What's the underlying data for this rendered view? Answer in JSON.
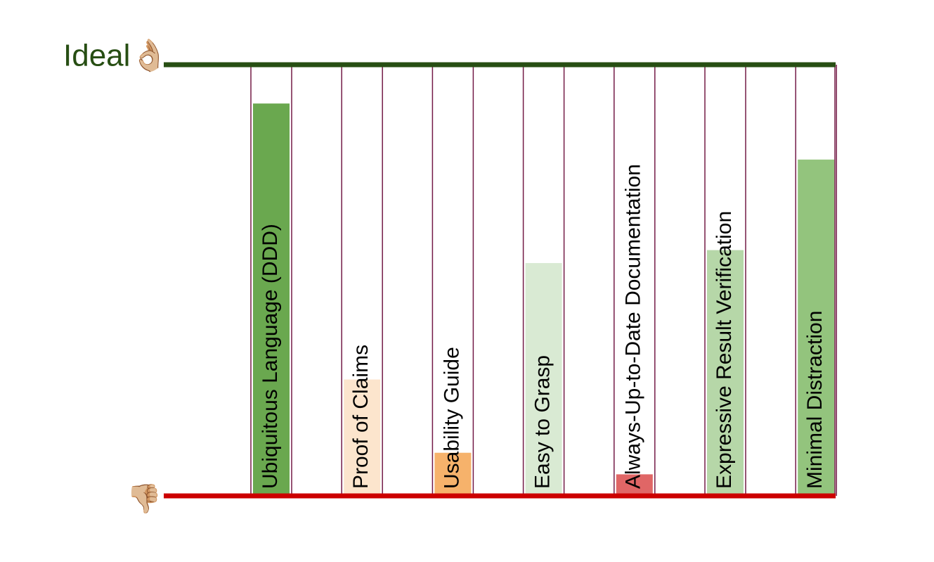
{
  "chart_data": {
    "type": "bar",
    "top_label": "Ideal👌🏼",
    "bottom_label": "👎🏼",
    "categories": [
      "Ubiquitous Language (DDD)",
      "Proof of Claims",
      "Usability Guide",
      "Easy to Grasp",
      "Always-Up-to-Date Documentation",
      "Expressive Result Verification",
      "Minimal Distraction"
    ],
    "values": [
      91,
      27,
      10,
      54,
      5,
      57,
      78
    ],
    "colors": [
      "#6aa84f",
      "#fce5cd",
      "#f6b26b",
      "#d9ead3",
      "#e06666",
      "#b6d7a8",
      "#93c47d"
    ],
    "ylim": [
      0,
      100
    ]
  }
}
